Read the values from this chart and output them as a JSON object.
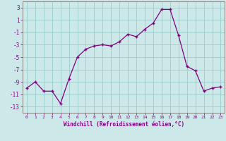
{
  "x": [
    0,
    1,
    2,
    3,
    4,
    5,
    6,
    7,
    8,
    9,
    10,
    11,
    12,
    13,
    14,
    15,
    16,
    17,
    18,
    19,
    20,
    21,
    22,
    23
  ],
  "y": [
    -10,
    -9,
    -10.5,
    -10.5,
    -12.5,
    -8.5,
    -5,
    -3.7,
    -3.2,
    -3.0,
    -3.2,
    -2.5,
    -1.3,
    -1.7,
    -0.5,
    0.5,
    2.7,
    2.7,
    -1.5,
    -6.5,
    -7.2,
    -10.5,
    -10.0,
    -9.8
  ],
  "line_color": "#800080",
  "marker_color": "#800080",
  "bg_color": "#cce8e8",
  "grid_color": "#99cccc",
  "axis_color": "#800080",
  "xlabel": "Windchill (Refroidissement éolien,°C)",
  "xlim": [
    -0.5,
    23.5
  ],
  "ylim": [
    -14,
    4
  ],
  "yticks": [
    3,
    1,
    -1,
    -3,
    -5,
    -7,
    -9,
    -11,
    -13
  ],
  "xticks": [
    0,
    1,
    2,
    3,
    4,
    5,
    6,
    7,
    8,
    9,
    10,
    11,
    12,
    13,
    14,
    15,
    16,
    17,
    18,
    19,
    20,
    21,
    22,
    23
  ]
}
